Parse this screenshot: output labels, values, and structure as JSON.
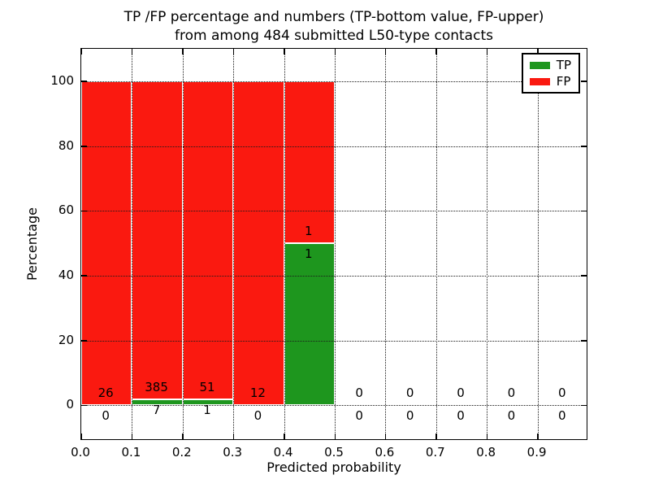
{
  "title": {
    "line1": "TP /FP percentage and numbers (TP-bottom value, FP-upper)",
    "line2": "from among 484 submitted L50-type contacts"
  },
  "axes": {
    "ylabel": "Percentage",
    "xlabel": "Predicted probability"
  },
  "legend": {
    "items": [
      {
        "label": "TP",
        "color": "#1e961e"
      },
      {
        "label": "FP",
        "color": "#fa1910"
      }
    ]
  },
  "chart_data": {
    "type": "bar",
    "stacked": true,
    "title": "TP /FP percentage and numbers (TP-bottom value, FP-upper) from among 484 submitted L50-type contacts",
    "xlabel": "Predicted probability",
    "ylabel": "Percentage",
    "total_contacts": 484,
    "xlim": [
      0.0,
      1.0
    ],
    "ylim": [
      -11,
      110
    ],
    "grid": true,
    "legend_position": "upper right",
    "xtick_values": [
      0.0,
      0.1,
      0.2,
      0.3,
      0.4,
      0.5,
      0.6,
      0.7,
      0.8,
      0.9
    ],
    "xtick_labels": [
      "0.0",
      "0.1",
      "0.2",
      "0.3",
      "0.4",
      "0.5",
      "0.6",
      "0.7",
      "0.8",
      "0.9"
    ],
    "yticks": [
      0,
      20,
      40,
      60,
      80,
      100
    ],
    "series": [
      {
        "name": "TP",
        "color": "#1e961e"
      },
      {
        "name": "FP",
        "color": "#fa1910"
      }
    ],
    "bins": [
      {
        "range": [
          0.0,
          0.1
        ],
        "tp": 0,
        "fp": 26,
        "tp_pct": 0,
        "fp_pct": 100
      },
      {
        "range": [
          0.1,
          0.2
        ],
        "tp": 7,
        "fp": 385,
        "tp_pct": 1.79,
        "fp_pct": 98.21
      },
      {
        "range": [
          0.2,
          0.3
        ],
        "tp": 1,
        "fp": 51,
        "tp_pct": 1.92,
        "fp_pct": 98.08
      },
      {
        "range": [
          0.3,
          0.4
        ],
        "tp": 0,
        "fp": 12,
        "tp_pct": 0,
        "fp_pct": 100
      },
      {
        "range": [
          0.4,
          0.5
        ],
        "tp": 1,
        "fp": 1,
        "tp_pct": 50,
        "fp_pct": 50
      },
      {
        "range": [
          0.5,
          0.6
        ],
        "tp": 0,
        "fp": 0,
        "tp_pct": 0,
        "fp_pct": 0
      },
      {
        "range": [
          0.6,
          0.7
        ],
        "tp": 0,
        "fp": 0,
        "tp_pct": 0,
        "fp_pct": 0
      },
      {
        "range": [
          0.7,
          0.8
        ],
        "tp": 0,
        "fp": 0,
        "tp_pct": 0,
        "fp_pct": 0
      },
      {
        "range": [
          0.8,
          0.9
        ],
        "tp": 0,
        "fp": 0,
        "tp_pct": 0,
        "fp_pct": 0
      },
      {
        "range": [
          0.9,
          1.0
        ],
        "tp": 0,
        "fp": 0,
        "tp_pct": 0,
        "fp_pct": 0
      }
    ]
  }
}
